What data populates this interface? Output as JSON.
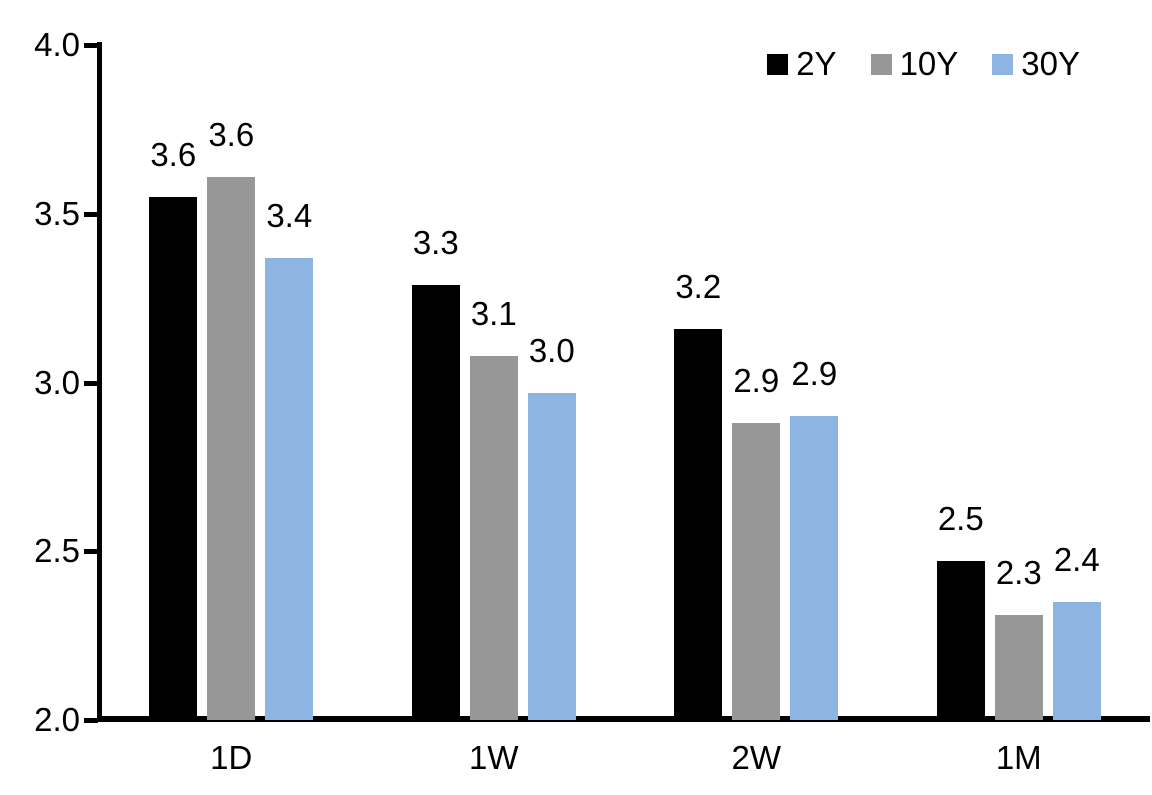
{
  "chart_data": {
    "type": "bar",
    "title": "",
    "xlabel": "",
    "ylabel": "",
    "categories": [
      "1D",
      "1W",
      "2W",
      "1M"
    ],
    "series": [
      {
        "name": "2Y",
        "color": "#000000",
        "values": [
          3.6,
          3.3,
          3.2,
          2.5
        ],
        "labels": [
          "3.6",
          "3.3",
          "3.2",
          "2.5"
        ],
        "plotted": [
          3.55,
          3.29,
          3.16,
          2.47
        ]
      },
      {
        "name": "10Y",
        "color": "#979797",
        "values": [
          3.6,
          3.1,
          2.9,
          2.3
        ],
        "labels": [
          "3.6",
          "3.1",
          "2.9",
          "2.3"
        ],
        "plotted": [
          3.61,
          3.08,
          2.88,
          2.31
        ]
      },
      {
        "name": "30Y",
        "color": "#8DB4E2",
        "values": [
          3.4,
          3.0,
          2.9,
          2.4
        ],
        "labels": [
          "3.4",
          "3.0",
          "2.9",
          "2.4"
        ],
        "plotted": [
          3.37,
          2.97,
          2.9,
          2.35
        ]
      }
    ],
    "ylim": [
      2.0,
      4.0
    ],
    "ytick_values": [
      4.0,
      3.5,
      3.0,
      2.5,
      2.0
    ],
    "yticks": [
      "4.0",
      "3.5",
      "3.0",
      "2.5",
      "2.0"
    ],
    "legend_position": "top-right",
    "grid": false,
    "axis_color": "#000000",
    "text_color": "#000000",
    "background_color": "#ffffff"
  }
}
